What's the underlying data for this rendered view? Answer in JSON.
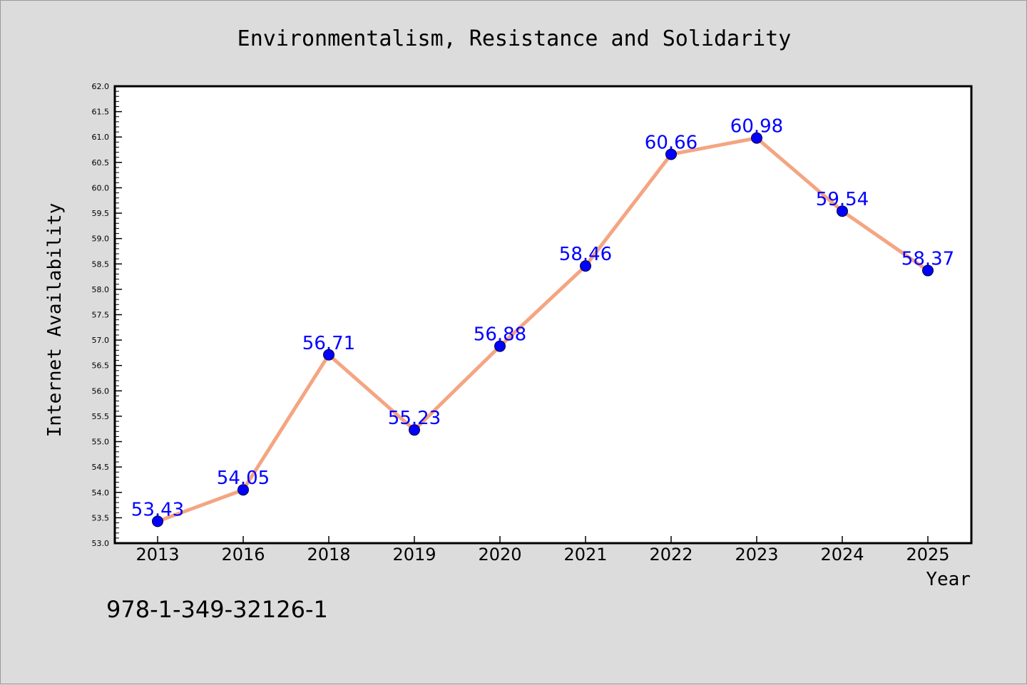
{
  "chart_data": {
    "type": "line",
    "title": "Environmentalism, Resistance and Solidarity",
    "xlabel": "Year",
    "ylabel": "Internet Availability",
    "categories": [
      "2013",
      "2016",
      "2018",
      "2019",
      "2020",
      "2021",
      "2022",
      "2023",
      "2024",
      "2025"
    ],
    "series": [
      {
        "values": [
          53.43,
          54.05,
          56.71,
          55.23,
          56.88,
          58.46,
          60.66,
          60.98,
          59.54,
          58.37
        ],
        "line_color": "#f4a582",
        "marker_color": "#0000ff"
      }
    ],
    "data_labels": [
      "53.43",
      "54.05",
      "56.71",
      "55.23",
      "56.88",
      "58.46",
      "60.66",
      "60.98",
      "59.54",
      "58.37"
    ],
    "ylim": [
      53.0,
      62.0
    ],
    "yticks": [
      "53.0",
      "53.5",
      "54.0",
      "54.5",
      "55.0",
      "55.5",
      "56.0",
      "56.5",
      "57.0",
      "57.5",
      "58.0",
      "58.5",
      "59.0",
      "59.5",
      "60.0",
      "60.5",
      "61.0",
      "61.5",
      "62.0"
    ],
    "grid": false,
    "label_color": "#0000ff"
  },
  "footer": {
    "isbn": "978-1-349-32126-1"
  }
}
